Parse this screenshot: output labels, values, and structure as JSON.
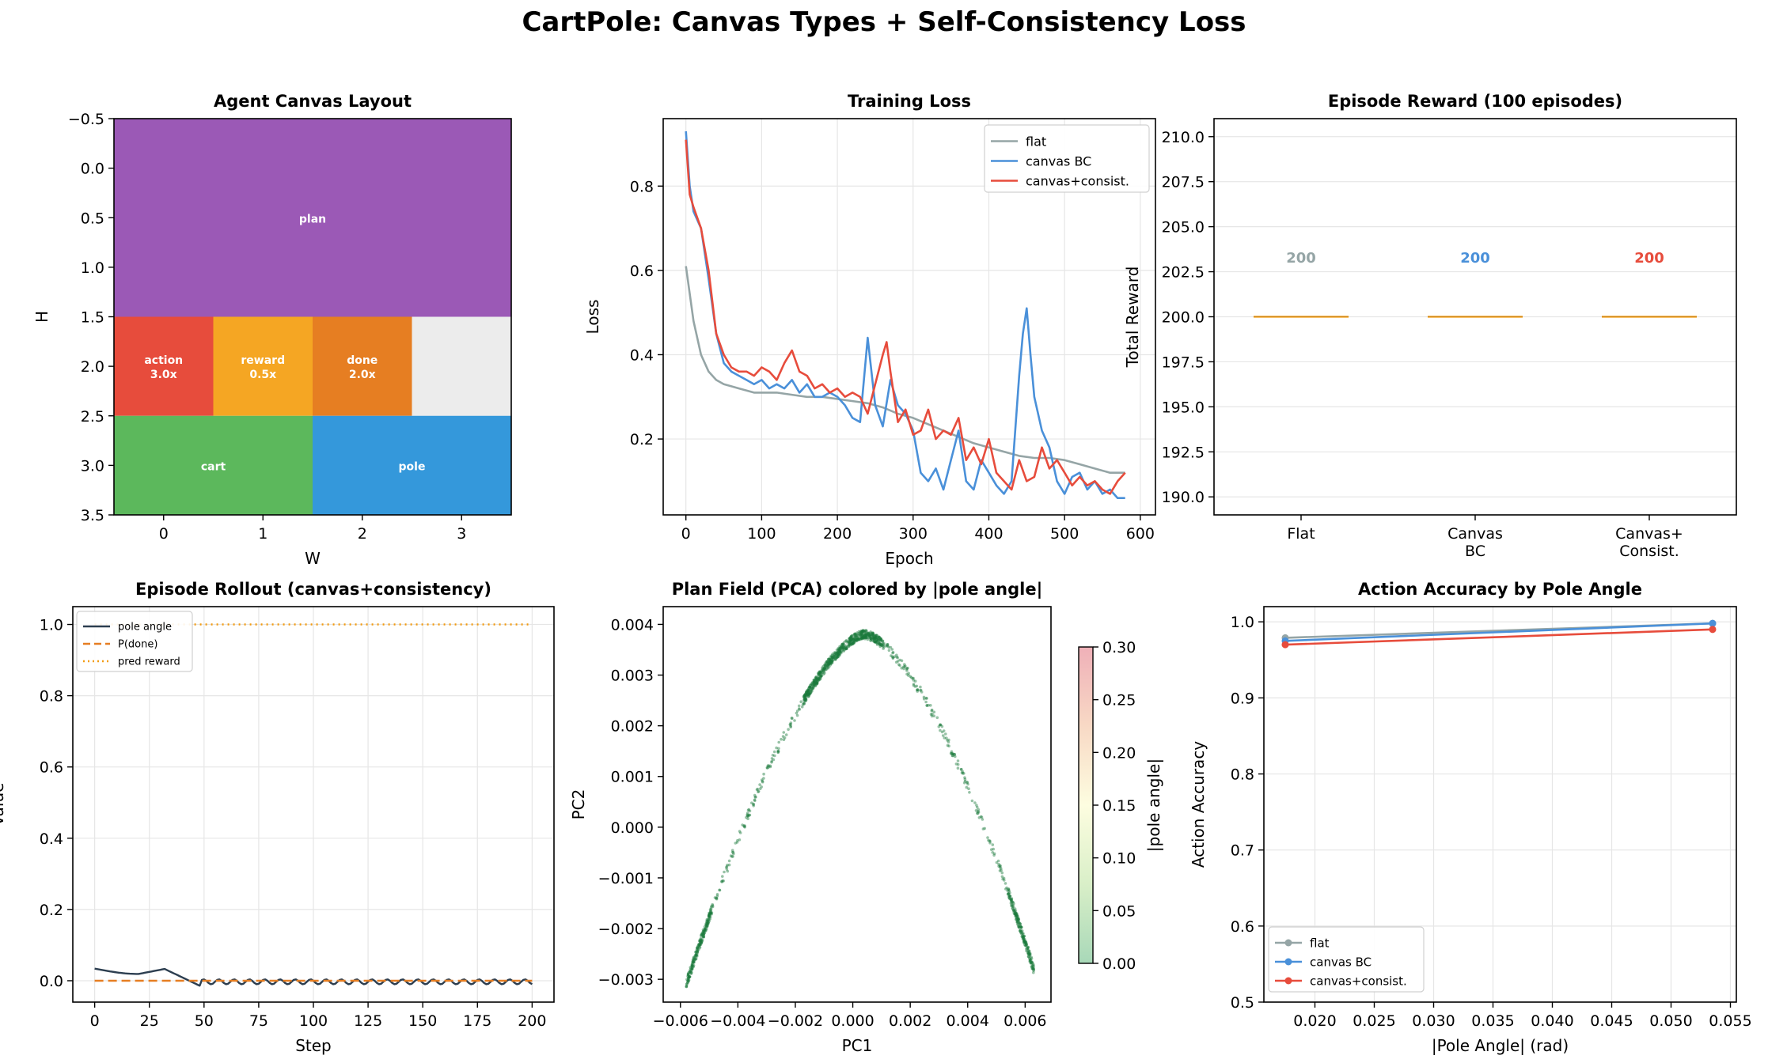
{
  "suptitle": "CartPole: Canvas Types + Self-Consistency Loss",
  "chart_data": [
    {
      "type": "heatmap",
      "title": "Agent Canvas Layout",
      "xlabel": "W",
      "ylabel": "H",
      "xlim": [
        -0.5,
        3.5
      ],
      "ylim": [
        3.5,
        -0.5
      ],
      "xticks": [
        "0",
        "1",
        "2",
        "3"
      ],
      "yticks": [
        "−0.5",
        "0.0",
        "0.5",
        "1.0",
        "1.5",
        "2.0",
        "2.5",
        "3.0",
        "3.5"
      ],
      "regions": [
        {
          "label": "plan",
          "x0": -0.5,
          "x1": 3.5,
          "y0": -0.5,
          "y1": 1.5,
          "color": "#9b59b6"
        },
        {
          "label": "action\n3.0x",
          "x0": -0.5,
          "x1": 0.5,
          "y0": 1.5,
          "y1": 2.5,
          "color": "#e74c3c"
        },
        {
          "label": "reward\n0.5x",
          "x0": 0.5,
          "x1": 1.5,
          "y0": 1.5,
          "y1": 2.5,
          "color": "#f5a623"
        },
        {
          "label": "done\n2.0x",
          "x0": 1.5,
          "x1": 2.5,
          "y0": 1.5,
          "y1": 2.5,
          "color": "#e67e22"
        },
        {
          "label": "",
          "x0": 2.5,
          "x1": 3.5,
          "y0": 1.5,
          "y1": 2.5,
          "color": "#ececec"
        },
        {
          "label": "cart",
          "x0": -0.5,
          "x1": 1.5,
          "y0": 2.5,
          "y1": 3.5,
          "color": "#5cb85c"
        },
        {
          "label": "pole",
          "x0": 1.5,
          "x1": 3.5,
          "y0": 2.5,
          "y1": 3.5,
          "color": "#3498db"
        }
      ]
    },
    {
      "type": "line",
      "title": "Training Loss",
      "xlabel": "Epoch",
      "ylabel": "Loss",
      "xlim": [
        -30,
        620
      ],
      "ylim": [
        0.02,
        0.96
      ],
      "xticks": [
        "0",
        "100",
        "200",
        "300",
        "400",
        "500",
        "600"
      ],
      "yticks": [
        "0.2",
        "0.4",
        "0.6",
        "0.8"
      ],
      "legend": "top-right",
      "grid": true,
      "series": [
        {
          "name": "flat",
          "color": "#95a5a6",
          "x": [
            0,
            10,
            20,
            30,
            40,
            50,
            60,
            70,
            80,
            90,
            100,
            120,
            140,
            160,
            180,
            200,
            220,
            240,
            260,
            280,
            300,
            320,
            340,
            360,
            380,
            400,
            420,
            440,
            460,
            480,
            500,
            520,
            540,
            560,
            580
          ],
          "y": [
            0.61,
            0.48,
            0.4,
            0.36,
            0.34,
            0.33,
            0.325,
            0.32,
            0.315,
            0.31,
            0.31,
            0.31,
            0.305,
            0.3,
            0.3,
            0.295,
            0.29,
            0.285,
            0.275,
            0.26,
            0.25,
            0.235,
            0.22,
            0.205,
            0.19,
            0.18,
            0.17,
            0.16,
            0.155,
            0.155,
            0.15,
            0.14,
            0.13,
            0.12,
            0.12
          ]
        },
        {
          "name": "canvas BC",
          "color": "#4a90d9",
          "x": [
            0,
            5,
            10,
            20,
            30,
            40,
            50,
            60,
            70,
            80,
            90,
            100,
            110,
            120,
            130,
            140,
            150,
            160,
            170,
            180,
            190,
            200,
            210,
            220,
            230,
            240,
            250,
            260,
            270,
            280,
            290,
            300,
            310,
            320,
            330,
            340,
            350,
            360,
            370,
            380,
            390,
            400,
            410,
            420,
            430,
            440,
            445,
            450,
            455,
            460,
            470,
            480,
            490,
            500,
            510,
            520,
            530,
            540,
            550,
            560,
            570,
            580
          ],
          "y": [
            0.93,
            0.8,
            0.74,
            0.7,
            0.58,
            0.45,
            0.38,
            0.36,
            0.35,
            0.34,
            0.33,
            0.34,
            0.32,
            0.33,
            0.32,
            0.34,
            0.31,
            0.33,
            0.3,
            0.3,
            0.31,
            0.3,
            0.28,
            0.25,
            0.24,
            0.44,
            0.28,
            0.23,
            0.34,
            0.28,
            0.26,
            0.22,
            0.12,
            0.1,
            0.13,
            0.08,
            0.15,
            0.22,
            0.1,
            0.08,
            0.15,
            0.12,
            0.09,
            0.07,
            0.1,
            0.35,
            0.45,
            0.51,
            0.4,
            0.3,
            0.22,
            0.18,
            0.1,
            0.07,
            0.11,
            0.12,
            0.08,
            0.1,
            0.07,
            0.08,
            0.06,
            0.06
          ]
        },
        {
          "name": "canvas+consist.",
          "color": "#e74c3c",
          "x": [
            0,
            5,
            10,
            20,
            30,
            40,
            50,
            60,
            70,
            80,
            90,
            100,
            110,
            120,
            130,
            140,
            150,
            160,
            170,
            180,
            190,
            200,
            210,
            220,
            230,
            240,
            250,
            260,
            265,
            270,
            280,
            290,
            300,
            310,
            320,
            330,
            340,
            350,
            360,
            370,
            380,
            390,
            400,
            410,
            420,
            430,
            440,
            450,
            460,
            470,
            480,
            490,
            500,
            510,
            520,
            530,
            540,
            550,
            560,
            570,
            580
          ],
          "y": [
            0.91,
            0.78,
            0.75,
            0.7,
            0.6,
            0.45,
            0.4,
            0.37,
            0.36,
            0.36,
            0.35,
            0.37,
            0.36,
            0.34,
            0.38,
            0.41,
            0.36,
            0.35,
            0.32,
            0.33,
            0.31,
            0.32,
            0.3,
            0.31,
            0.3,
            0.26,
            0.33,
            0.4,
            0.43,
            0.36,
            0.24,
            0.27,
            0.21,
            0.22,
            0.27,
            0.2,
            0.22,
            0.21,
            0.25,
            0.15,
            0.18,
            0.14,
            0.2,
            0.12,
            0.1,
            0.08,
            0.15,
            0.1,
            0.11,
            0.18,
            0.13,
            0.15,
            0.12,
            0.09,
            0.11,
            0.09,
            0.1,
            0.08,
            0.07,
            0.1,
            0.12
          ]
        }
      ]
    },
    {
      "type": "bar",
      "title": "Episode Reward (100 episodes)",
      "xlabel": "",
      "ylabel": "Total Reward",
      "categories": [
        "Flat",
        "Canvas\nBC",
        "Canvas+\nConsist."
      ],
      "values": [
        200,
        200,
        200
      ],
      "value_labels": [
        "200",
        "200",
        "200"
      ],
      "label_colors": [
        "#95a5a6",
        "#4a90d9",
        "#e74c3c"
      ],
      "median_color": "#f39c12",
      "ylim": [
        189,
        211
      ],
      "yticks": [
        "190.0",
        "192.5",
        "195.0",
        "197.5",
        "200.0",
        "202.5",
        "205.0",
        "207.5",
        "210.0"
      ],
      "grid": true
    },
    {
      "type": "line",
      "title": "Episode Rollout (canvas+consistency)",
      "xlabel": "Step",
      "ylabel": "Value",
      "xlim": [
        -10,
        210
      ],
      "ylim": [
        -0.06,
        1.05
      ],
      "xticks": [
        "0",
        "25",
        "50",
        "75",
        "100",
        "125",
        "150",
        "175",
        "200"
      ],
      "yticks": [
        "0.0",
        "0.2",
        "0.4",
        "0.6",
        "0.8",
        "1.0"
      ],
      "legend": "top-left",
      "grid": true,
      "series": [
        {
          "name": "pole angle",
          "color": "#2c3e50",
          "style": "solid"
        },
        {
          "name": "P(done)",
          "color": "#e67e22",
          "style": "dashed",
          "x": [
            0,
            200
          ],
          "y": [
            0.0,
            0.0
          ]
        },
        {
          "name": "pred reward",
          "color": "#f39c12",
          "style": "dotted",
          "x": [
            0,
            200
          ],
          "y": [
            1.0,
            1.0
          ]
        }
      ]
    },
    {
      "type": "scatter",
      "title": "Plan Field (PCA) colored by |pole angle|",
      "xlabel": "PC1",
      "ylabel": "PC2",
      "xlim": [
        -0.0066,
        0.0069
      ],
      "ylim": [
        -0.00345,
        0.00435
      ],
      "xticks": [
        "−0.006",
        "−0.004",
        "−0.002",
        "0.000",
        "0.002",
        "0.004",
        "0.006"
      ],
      "yticks": [
        "−0.003",
        "−0.002",
        "−0.001",
        "0.000",
        "0.001",
        "0.002",
        "0.003",
        "0.004"
      ],
      "colorbar_label": "|pole angle|",
      "colorbar_ticks": [
        "0.00",
        "0.05",
        "0.10",
        "0.15",
        "0.20",
        "0.25",
        "0.30"
      ],
      "colorbar_range": [
        0.0,
        0.3
      ],
      "point_color": "#1a7a3c"
    },
    {
      "type": "line",
      "title": "Action Accuracy by Pole Angle",
      "xlabel": "|Pole Angle| (rad)",
      "ylabel": "Action Accuracy",
      "xlim": [
        0.0157,
        0.0555
      ],
      "ylim": [
        0.5,
        1.02
      ],
      "xticks": [
        "0.020",
        "0.025",
        "0.030",
        "0.035",
        "0.040",
        "0.045",
        "0.050",
        "0.055"
      ],
      "yticks": [
        "0.5",
        "0.6",
        "0.7",
        "0.8",
        "0.9",
        "1.0"
      ],
      "legend": "bottom-left",
      "grid": true,
      "series": [
        {
          "name": "flat",
          "color": "#95a5a6",
          "x": [
            0.0175,
            0.0535
          ],
          "y": [
            0.979,
            0.998
          ]
        },
        {
          "name": "canvas BC",
          "color": "#4a90d9",
          "x": [
            0.0175,
            0.0535
          ],
          "y": [
            0.975,
            0.998
          ]
        },
        {
          "name": "canvas+consist.",
          "color": "#e74c3c",
          "x": [
            0.0175,
            0.0535
          ],
          "y": [
            0.97,
            0.99
          ]
        }
      ]
    }
  ]
}
